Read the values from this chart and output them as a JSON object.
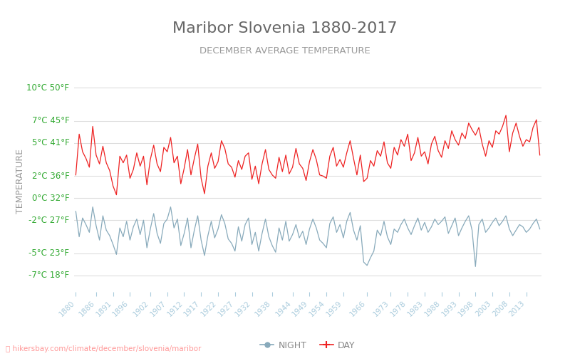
{
  "title": "Maribor Slovenia 1880-2017",
  "subtitle": "DECEMBER AVERAGE TEMPERATURE",
  "ylabel": "TEMPERATURE",
  "xlabel_url": "hikersbay.com/climate/december/slovenia/maribor",
  "start_year": 1880,
  "end_year": 2017,
  "yticks_c": [
    -7,
    -5,
    -2,
    0,
    2,
    5,
    7,
    10
  ],
  "yticks_f": [
    18,
    23,
    27,
    32,
    36,
    41,
    45,
    50
  ],
  "ylim": [
    -8.5,
    11.5
  ],
  "title_color": "#666666",
  "subtitle_color": "#999999",
  "ylabel_color": "#999999",
  "ytick_color_left": "#33aa33",
  "xtick_color": "#aaccdd",
  "grid_color": "#dddddd",
  "day_color": "#ee2222",
  "night_color": "#88aabb",
  "url_color": "#ff9999",
  "background_color": "#ffffff",
  "day_temps": [
    2.1,
    5.8,
    4.2,
    3.6,
    2.8,
    6.5,
    3.9,
    3.1,
    4.7,
    3.2,
    2.5,
    1.1,
    0.3,
    3.8,
    3.2,
    3.9,
    1.8,
    2.6,
    4.1,
    2.9,
    3.8,
    1.2,
    3.5,
    4.8,
    3.1,
    2.4,
    4.6,
    4.2,
    5.5,
    3.2,
    3.8,
    1.3,
    2.7,
    4.4,
    2.1,
    3.6,
    4.9,
    1.8,
    0.4,
    2.9,
    4.1,
    2.7,
    3.3,
    5.2,
    4.5,
    3.1,
    2.8,
    1.9,
    3.4,
    2.6,
    3.8,
    4.1,
    1.7,
    2.9,
    1.3,
    3.1,
    4.4,
    2.6,
    2.1,
    1.8,
    3.7,
    2.4,
    3.9,
    2.2,
    2.8,
    4.5,
    3.1,
    2.7,
    1.6,
    3.3,
    4.4,
    3.5,
    2.1,
    2.0,
    1.8,
    3.8,
    4.6,
    2.9,
    3.5,
    2.8,
    4.1,
    5.2,
    3.6,
    2.1,
    3.9,
    1.5,
    1.8,
    3.4,
    2.9,
    4.3,
    3.8,
    5.1,
    3.2,
    2.7,
    4.6,
    3.9,
    5.3,
    4.7,
    5.8,
    3.4,
    4.1,
    5.5,
    3.8,
    4.2,
    3.1,
    4.9,
    5.6,
    4.3,
    3.7,
    5.2,
    4.5,
    6.1,
    5.3,
    4.8,
    5.9,
    5.4,
    6.8,
    6.2,
    5.7,
    6.4,
    4.9,
    3.8,
    5.2,
    4.6,
    6.1,
    5.8,
    6.5,
    7.5,
    4.2,
    5.9,
    6.8,
    5.6,
    4.7,
    5.3,
    5.1,
    6.4,
    7.1,
    3.9
  ],
  "night_temps": [
    -1.2,
    -3.5,
    -1.8,
    -2.4,
    -3.1,
    -0.8,
    -2.5,
    -3.8,
    -1.6,
    -2.9,
    -3.4,
    -4.2,
    -5.1,
    -2.7,
    -3.5,
    -2.1,
    -3.8,
    -2.6,
    -1.9,
    -3.3,
    -2.0,
    -4.5,
    -2.8,
    -1.4,
    -3.2,
    -4.1,
    -2.3,
    -1.9,
    -0.8,
    -2.7,
    -1.9,
    -4.3,
    -3.2,
    -1.8,
    -4.5,
    -2.9,
    -1.6,
    -3.8,
    -5.2,
    -3.4,
    -2.1,
    -3.6,
    -2.8,
    -1.5,
    -2.3,
    -3.7,
    -4.1,
    -4.8,
    -2.6,
    -3.9,
    -2.4,
    -1.8,
    -4.2,
    -3.1,
    -4.8,
    -3.2,
    -1.9,
    -3.5,
    -4.3,
    -4.9,
    -2.7,
    -3.8,
    -2.1,
    -3.9,
    -3.3,
    -2.4,
    -3.6,
    -3.0,
    -4.2,
    -2.8,
    -1.9,
    -2.7,
    -3.8,
    -4.1,
    -4.5,
    -2.3,
    -1.7,
    -3.1,
    -2.4,
    -3.6,
    -2.1,
    -1.3,
    -2.9,
    -3.8,
    -2.5,
    -5.8,
    -6.1,
    -5.4,
    -4.8,
    -2.9,
    -3.4,
    -2.1,
    -3.5,
    -4.2,
    -2.8,
    -3.1,
    -2.4,
    -1.9,
    -2.7,
    -3.3,
    -2.5,
    -1.8,
    -2.9,
    -2.2,
    -3.1,
    -2.6,
    -1.9,
    -2.4,
    -2.1,
    -1.7,
    -3.2,
    -2.5,
    -1.8,
    -3.4,
    -2.7,
    -2.1,
    -1.6,
    -2.9,
    -6.2,
    -2.4,
    -1.9,
    -3.1,
    -2.7,
    -2.2,
    -1.8,
    -2.5,
    -2.1,
    -1.6,
    -2.8,
    -3.4,
    -2.9,
    -2.4,
    -2.6,
    -3.1,
    -2.8,
    -2.3,
    -1.9,
    -2.8
  ],
  "xtick_years": [
    1880,
    1886,
    1891,
    1896,
    1902,
    1907,
    1912,
    1917,
    1922,
    1927,
    1932,
    1938,
    1944,
    1949,
    1954,
    1959,
    1966,
    1973,
    1978,
    1983,
    1988,
    1993,
    1998,
    2003,
    2008,
    2013
  ]
}
